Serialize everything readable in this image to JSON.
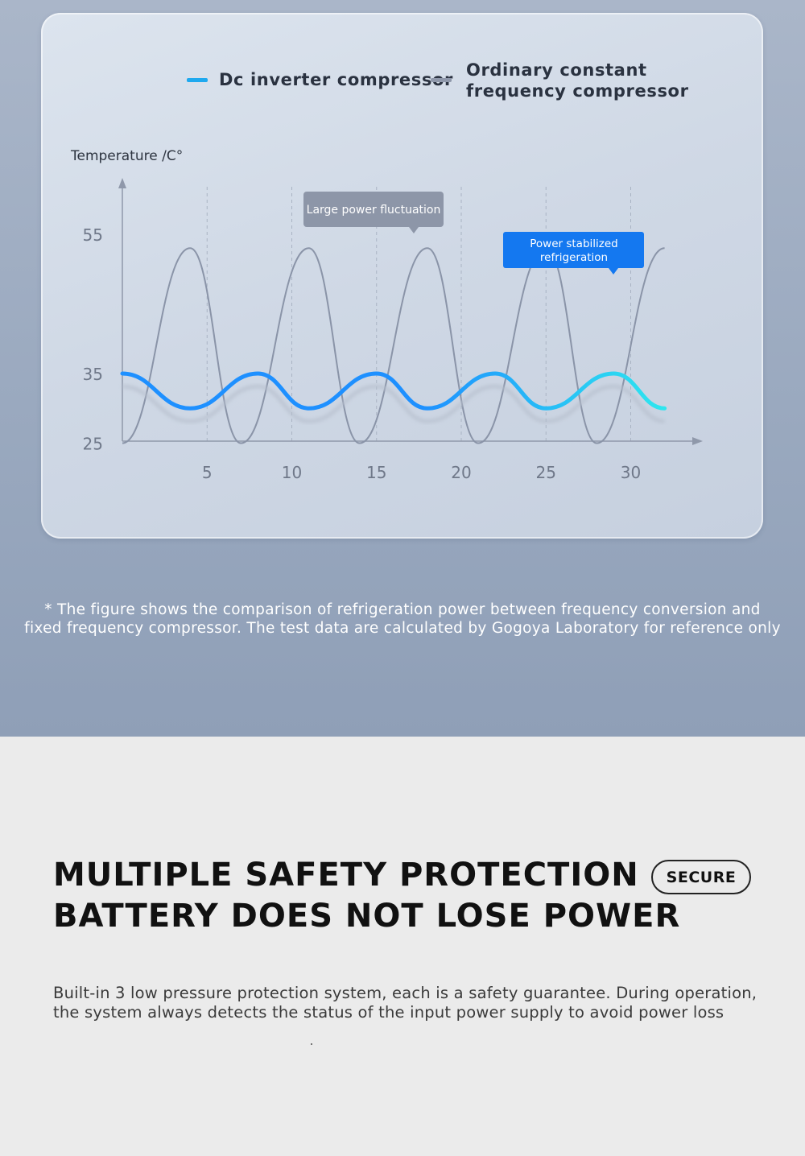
{
  "chart_data": {
    "type": "line",
    "ylabel": "Temperature /C°",
    "x_ticks": [
      5,
      10,
      15,
      20,
      25,
      30
    ],
    "y_ticks": [
      25,
      35,
      55
    ],
    "xlim": [
      0,
      34
    ],
    "series": [
      {
        "name": "Dc inverter compressor",
        "color": "#1e90ff",
        "color_end": "#2ee6ef",
        "x": [
          0,
          4,
          8,
          11,
          15,
          18,
          22,
          25,
          29,
          32
        ],
        "values": [
          35,
          30,
          35,
          30,
          35,
          30,
          35,
          30,
          35,
          30
        ]
      },
      {
        "name": "Ordinary constant frequency compressor",
        "color": "#8a94a8",
        "x": [
          0,
          4,
          7,
          11,
          14,
          18,
          21,
          25,
          28,
          32
        ],
        "values": [
          25,
          53,
          25,
          53,
          25,
          53,
          25,
          53,
          25,
          53
        ]
      }
    ],
    "annotations": [
      {
        "text": "Large power fluctuation"
      },
      {
        "text": "Power stabilized\nrefrigeration"
      }
    ]
  },
  "legend": {
    "item1": "Dc inverter compressor",
    "item2_line1": "Ordinary constant",
    "item2_line2": "frequency compressor"
  },
  "note": {
    "line1": "* The figure shows the comparison of refrigeration power between frequency conversion and",
    "line2": "fixed frequency compressor. The test data are calculated by Gogoya Laboratory for reference only"
  },
  "section": {
    "heading_line1": "MULTIPLE SAFETY PROTECTION",
    "heading_line2": "BATTERY DOES NOT LOSE POWER",
    "badge": "SECURE",
    "desc_line1": "Built-in 3 low pressure protection system, each is a safety guarantee. During operation,",
    "desc_line2": "the system always detects the status of the input power supply to avoid power loss"
  }
}
